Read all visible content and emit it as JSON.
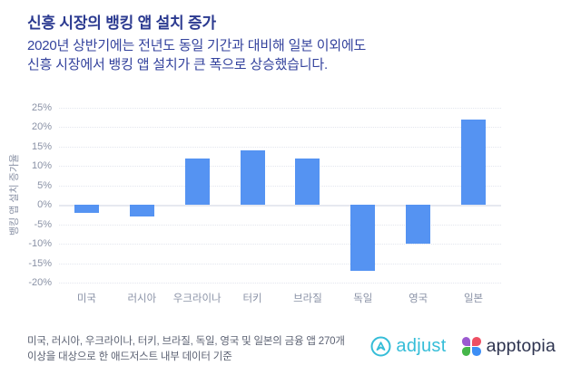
{
  "header": {
    "title": "신흥 시장의 뱅킹 앱 설치 증가",
    "subtitle_line1": "2020년 상반기에는 전년도 동일 기간과 대비해 일본 이외에도",
    "subtitle_line2": "신흥 시장에서 뱅킹 앱 설치가 큰 폭으로 상승했습니다."
  },
  "chart_data": {
    "type": "bar",
    "title": "",
    "ylabel": "뱅킹 앱 설치 증가율",
    "xlabel": "",
    "categories": [
      "미국",
      "러시아",
      "우크라이나",
      "터키",
      "브라질",
      "독일",
      "영국",
      "일본"
    ],
    "values": [
      -2,
      -3,
      12,
      14,
      12,
      -17,
      -10,
      22
    ],
    "unit": "%",
    "ylim": [
      -20,
      25
    ],
    "ytick_labels": [
      "25%",
      "20%",
      "15%",
      "10%",
      "5%",
      "0%",
      "-5%",
      "-10%",
      "-15%",
      "-20%"
    ],
    "grid": "horizontal-dotted",
    "legend": "none"
  },
  "footer": {
    "source_line1": "미국, 러시아, 우크라이나, 터키, 브라질, 독일, 영국 및 일본의 금융 앱 270개",
    "source_line2": "이상을 대상으로 한 애드저스트 내부 데이터 기준",
    "adjust_label": "adjust",
    "apptopia_label": "apptopia"
  },
  "colors": {
    "title_text": "#2b3a90",
    "subtitle_text": "#33429d",
    "bar": "#5593f2",
    "axis_text": "#8a92a6",
    "gridline": "#e3e6ee",
    "zero_line": "#e6e9f0",
    "footer_text": "#5c6273",
    "adjust_brand": "#35bdd8",
    "apptopia_text": "#2e3450",
    "petal_purple": "#9b59d0",
    "petal_red": "#ee4f63",
    "petal_green": "#45b649",
    "petal_blue": "#3d8ef5"
  }
}
